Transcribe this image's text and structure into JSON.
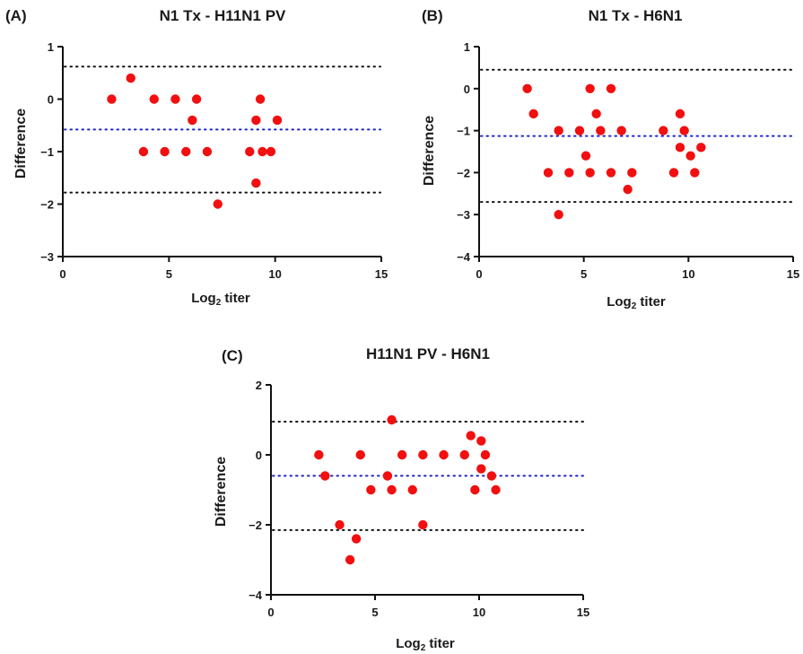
{
  "chart_data": [
    {
      "type": "scatter",
      "panel_label": "(A)",
      "title": "N1 Tx - H11N1 PV",
      "xlabel_main": "Log",
      "xlabel_sub": "2",
      "xlabel_rest": " titer",
      "ylabel": "Difference",
      "xlim": [
        0,
        15
      ],
      "ylim": [
        -3,
        1
      ],
      "xticks": [
        "0",
        "5",
        "10",
        "15"
      ],
      "yticks": [
        "1",
        "0",
        "−1",
        "−2",
        "−3"
      ],
      "grid": false,
      "reference_lines": {
        "mean": -0.58,
        "upper": 0.62,
        "lower": -1.78
      },
      "points": [
        {
          "x": 2.3,
          "y": 0
        },
        {
          "x": 3.2,
          "y": 0.4
        },
        {
          "x": 3.8,
          "y": -1
        },
        {
          "x": 4.3,
          "y": 0
        },
        {
          "x": 4.8,
          "y": -1
        },
        {
          "x": 5.3,
          "y": 0
        },
        {
          "x": 5.8,
          "y": -1
        },
        {
          "x": 6.1,
          "y": -0.4
        },
        {
          "x": 6.3,
          "y": 0
        },
        {
          "x": 6.8,
          "y": -1
        },
        {
          "x": 7.3,
          "y": -2
        },
        {
          "x": 8.8,
          "y": -1
        },
        {
          "x": 9.1,
          "y": -0.4
        },
        {
          "x": 9.1,
          "y": -1.6
        },
        {
          "x": 9.3,
          "y": 0
        },
        {
          "x": 9.4,
          "y": -1
        },
        {
          "x": 9.8,
          "y": -1
        },
        {
          "x": 10.1,
          "y": -0.4
        }
      ]
    },
    {
      "type": "scatter",
      "panel_label": "(B)",
      "title": "N1 Tx - H6N1",
      "xlabel_main": "Log",
      "xlabel_sub": "2",
      "xlabel_rest": " titer",
      "ylabel": "Difference",
      "xlim": [
        0,
        15
      ],
      "ylim": [
        -4,
        1
      ],
      "xticks": [
        "0",
        "5",
        "10",
        "15"
      ],
      "yticks": [
        "1",
        "0",
        "−1",
        "−2",
        "−3",
        "−4"
      ],
      "grid": false,
      "reference_lines": {
        "mean": -1.13,
        "upper": 0.45,
        "lower": -2.7
      },
      "points": [
        {
          "x": 2.3,
          "y": 0
        },
        {
          "x": 2.6,
          "y": -0.6
        },
        {
          "x": 3.3,
          "y": -2
        },
        {
          "x": 3.8,
          "y": -1
        },
        {
          "x": 3.8,
          "y": -3
        },
        {
          "x": 4.3,
          "y": -2
        },
        {
          "x": 4.8,
          "y": -1
        },
        {
          "x": 5.1,
          "y": -1.6
        },
        {
          "x": 5.3,
          "y": 0
        },
        {
          "x": 5.3,
          "y": -2
        },
        {
          "x": 5.6,
          "y": -0.6
        },
        {
          "x": 5.8,
          "y": -1
        },
        {
          "x": 6.3,
          "y": 0
        },
        {
          "x": 6.3,
          "y": -2
        },
        {
          "x": 6.8,
          "y": -1
        },
        {
          "x": 7.1,
          "y": -2.4
        },
        {
          "x": 7.3,
          "y": -2
        },
        {
          "x": 8.8,
          "y": -1
        },
        {
          "x": 9.3,
          "y": -2
        },
        {
          "x": 9.6,
          "y": -0.6
        },
        {
          "x": 9.6,
          "y": -1.4
        },
        {
          "x": 9.8,
          "y": -1
        },
        {
          "x": 10.1,
          "y": -1.6
        },
        {
          "x": 10.3,
          "y": -2
        },
        {
          "x": 10.6,
          "y": -1.4
        }
      ]
    },
    {
      "type": "scatter",
      "panel_label": "(C)",
      "title": "H11N1 PV - H6N1",
      "xlabel_main": "Log",
      "xlabel_sub": "2",
      "xlabel_rest": " titer",
      "ylabel": "Difference",
      "xlim": [
        0,
        15
      ],
      "ylim": [
        -4,
        2
      ],
      "xticks": [
        "0",
        "5",
        "10",
        "15"
      ],
      "yticks": [
        "2",
        "0",
        "−2",
        "−4"
      ],
      "grid": false,
      "reference_lines": {
        "mean": -0.6,
        "upper": 0.95,
        "lower": -2.15
      },
      "points": [
        {
          "x": 2.3,
          "y": 0
        },
        {
          "x": 2.6,
          "y": -0.6
        },
        {
          "x": 3.3,
          "y": -2
        },
        {
          "x": 3.8,
          "y": -3
        },
        {
          "x": 4.1,
          "y": -2.4
        },
        {
          "x": 4.3,
          "y": 0
        },
        {
          "x": 4.8,
          "y": -1
        },
        {
          "x": 5.6,
          "y": -0.6
        },
        {
          "x": 5.8,
          "y": 1
        },
        {
          "x": 5.8,
          "y": -1
        },
        {
          "x": 6.3,
          "y": 0
        },
        {
          "x": 6.8,
          "y": -1
        },
        {
          "x": 7.3,
          "y": 0
        },
        {
          "x": 7.3,
          "y": -2
        },
        {
          "x": 8.3,
          "y": 0
        },
        {
          "x": 9.3,
          "y": 0
        },
        {
          "x": 9.6,
          "y": 0.55
        },
        {
          "x": 9.8,
          "y": -1
        },
        {
          "x": 10.1,
          "y": 0.4
        },
        {
          "x": 10.1,
          "y": -0.4
        },
        {
          "x": 10.3,
          "y": 0
        },
        {
          "x": 10.6,
          "y": -0.6
        },
        {
          "x": 10.8,
          "y": -1
        }
      ]
    }
  ]
}
